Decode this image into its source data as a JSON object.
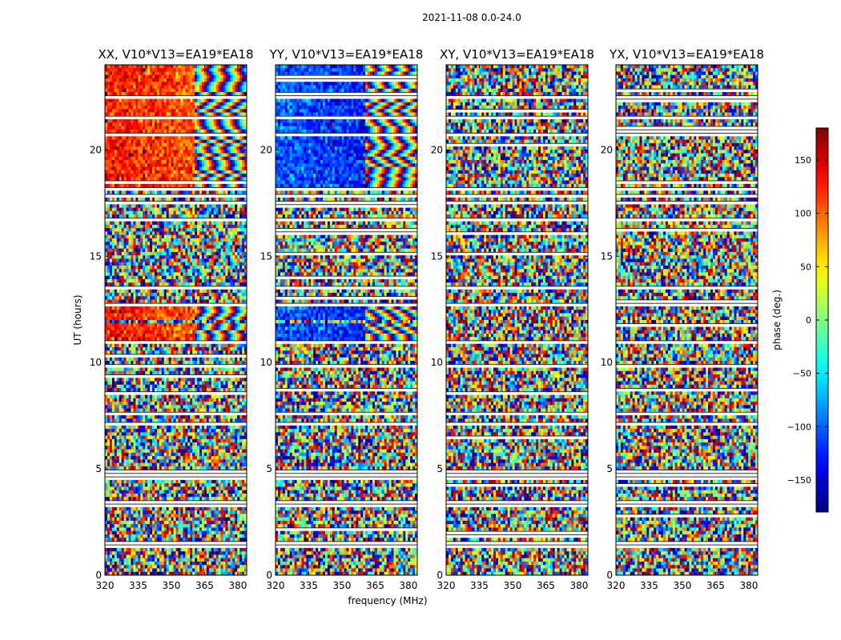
{
  "chart_data": {
    "type": "heatmap",
    "suptitle": "2021-11-08 0.0-24.0",
    "xlabel": "frequency (MHz)",
    "ylabel": "UT (hours)",
    "xlim": [
      320,
      384
    ],
    "ylim": [
      0,
      24
    ],
    "x_ticks": [
      320,
      335,
      350,
      365,
      380
    ],
    "y_ticks": [
      0,
      5,
      10,
      15,
      20
    ],
    "panels": [
      {
        "title": "XX, V10*V13=EA19*EA18",
        "polarization": "XX",
        "coherent_phase_deg": 130
      },
      {
        "title": "YY, V10*V13=EA19*EA18",
        "polarization": "YY",
        "coherent_phase_deg": -100
      },
      {
        "title": "XY, V10*V13=EA19*EA18",
        "polarization": "XY",
        "coherent_phase_deg": null
      },
      {
        "title": "YX, V10*V13=EA19*EA18",
        "polarization": "YX",
        "coherent_phase_deg": null
      }
    ],
    "colorbar": {
      "label": "phase (deg.)",
      "colormap": "jet",
      "range": [
        -180,
        180
      ],
      "ticks": [
        150,
        100,
        50,
        0,
        -50,
        -100,
        -150
      ],
      "tick_labels": [
        "150",
        "100",
        "50",
        "0",
        "−50",
        "−100",
        "−150"
      ]
    },
    "coherent_intervals_ut": [
      [
        18.1,
        20.7
      ],
      [
        20.8,
        24.0
      ],
      [
        12.0,
        12.6
      ],
      [
        11.0,
        11.8
      ]
    ],
    "fringe_region_mhz": [
      361,
      384
    ],
    "flagged_rows_ut": [
      1.3,
      1.5,
      3.3,
      3.5,
      4.6,
      4.8,
      7.1,
      7.6,
      9.9,
      10.9,
      12.7,
      13.5,
      16.7,
      17.5,
      17.9,
      18.1,
      20.7,
      21.5,
      22.5
    ]
  }
}
